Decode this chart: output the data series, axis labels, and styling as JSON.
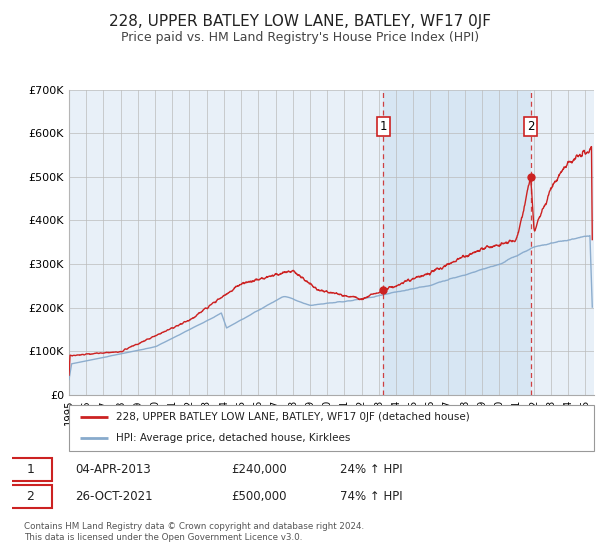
{
  "title": "228, UPPER BATLEY LOW LANE, BATLEY, WF17 0JF",
  "subtitle": "Price paid vs. HM Land Registry's House Price Index (HPI)",
  "title_fontsize": 11,
  "subtitle_fontsize": 9,
  "background_color": "#ffffff",
  "plot_bg_color": "#e8f0f8",
  "plot_bg_color2": "#d0e4f4",
  "grid_color": "#cccccc",
  "ylabel_ticks": [
    "£0",
    "£100K",
    "£200K",
    "£300K",
    "£400K",
    "£500K",
    "£600K",
    "£700K"
  ],
  "ytick_vals": [
    0,
    100000,
    200000,
    300000,
    400000,
    500000,
    600000,
    700000
  ],
  "ylim": [
    0,
    700000
  ],
  "xlim_start": 1995.0,
  "xlim_end": 2025.5,
  "sale1_date": 2013.27,
  "sale1_price": 240000,
  "sale2_date": 2021.82,
  "sale2_price": 500000,
  "red_line_color": "#cc2222",
  "blue_line_color": "#88aacc",
  "vline_color": "#cc2222",
  "dot_color": "#cc2222",
  "shade_color": "#cce0f0",
  "legend_label_red": "228, UPPER BATLEY LOW LANE, BATLEY, WF17 0JF (detached house)",
  "legend_label_blue": "HPI: Average price, detached house, Kirklees",
  "table_row1": [
    "1",
    "04-APR-2013",
    "£240,000",
    "24% ↑ HPI"
  ],
  "table_row2": [
    "2",
    "26-OCT-2021",
    "£500,000",
    "74% ↑ HPI"
  ],
  "footnote1": "Contains HM Land Registry data © Crown copyright and database right 2024.",
  "footnote2": "This data is licensed under the Open Government Licence v3.0.",
  "xtick_years": [
    1995,
    1996,
    1997,
    1998,
    1999,
    2000,
    2001,
    2002,
    2003,
    2004,
    2005,
    2006,
    2007,
    2008,
    2009,
    2010,
    2011,
    2012,
    2013,
    2014,
    2015,
    2016,
    2017,
    2018,
    2019,
    2020,
    2021,
    2022,
    2023,
    2024,
    2025
  ]
}
